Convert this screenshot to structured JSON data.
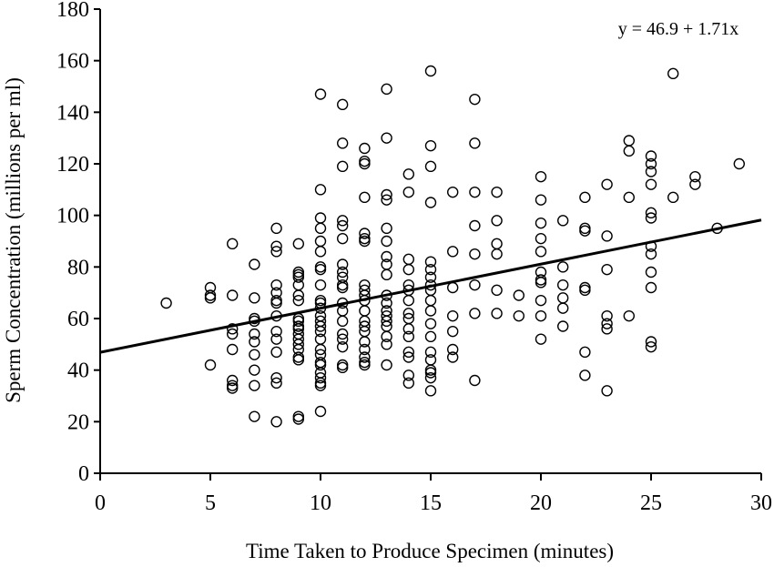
{
  "chart_data": {
    "type": "scatter",
    "title": "",
    "xlabel": "Time Taken to Produce Specimen (minutes)",
    "ylabel": "Sperm Concentration (millions per ml)",
    "xlim": [
      0,
      30
    ],
    "ylim": [
      0,
      180
    ],
    "xticks": [
      0,
      5,
      10,
      15,
      20,
      25,
      30
    ],
    "yticks": [
      0,
      20,
      40,
      60,
      80,
      100,
      120,
      140,
      160,
      180
    ],
    "grid": false,
    "marker": "open-circle",
    "annotation": "y = 46.9 + 1.71x",
    "regression": {
      "intercept": 46.9,
      "slope": 1.71
    },
    "points": [
      [
        3,
        66
      ],
      [
        5,
        72
      ],
      [
        5,
        69
      ],
      [
        5,
        68
      ],
      [
        5,
        42
      ],
      [
        6,
        89
      ],
      [
        6,
        69
      ],
      [
        6,
        56
      ],
      [
        6,
        54
      ],
      [
        6,
        48
      ],
      [
        6,
        36
      ],
      [
        6,
        34
      ],
      [
        6,
        33
      ],
      [
        7,
        81
      ],
      [
        7,
        68
      ],
      [
        7,
        60
      ],
      [
        7,
        59
      ],
      [
        7,
        54
      ],
      [
        7,
        51
      ],
      [
        7,
        46
      ],
      [
        7,
        40
      ],
      [
        7,
        34
      ],
      [
        7,
        22
      ],
      [
        8,
        95
      ],
      [
        8,
        88
      ],
      [
        8,
        86
      ],
      [
        8,
        73
      ],
      [
        8,
        70
      ],
      [
        8,
        67
      ],
      [
        8,
        66
      ],
      [
        8,
        61
      ],
      [
        8,
        55
      ],
      [
        8,
        52
      ],
      [
        8,
        47
      ],
      [
        8,
        37
      ],
      [
        8,
        35
      ],
      [
        8,
        20
      ],
      [
        9,
        89
      ],
      [
        9,
        78
      ],
      [
        9,
        77
      ],
      [
        9,
        76
      ],
      [
        9,
        73
      ],
      [
        9,
        69
      ],
      [
        9,
        67
      ],
      [
        9,
        60
      ],
      [
        9,
        59
      ],
      [
        9,
        57
      ],
      [
        9,
        56
      ],
      [
        9,
        54
      ],
      [
        9,
        52
      ],
      [
        9,
        50
      ],
      [
        9,
        48
      ],
      [
        9,
        45
      ],
      [
        9,
        44
      ],
      [
        9,
        21
      ],
      [
        9,
        22
      ],
      [
        10,
        147
      ],
      [
        10,
        110
      ],
      [
        10,
        99
      ],
      [
        10,
        95
      ],
      [
        10,
        90
      ],
      [
        10,
        86
      ],
      [
        10,
        80
      ],
      [
        10,
        79
      ],
      [
        10,
        73
      ],
      [
        10,
        67
      ],
      [
        10,
        66
      ],
      [
        10,
        64
      ],
      [
        10,
        61
      ],
      [
        10,
        59
      ],
      [
        10,
        57
      ],
      [
        10,
        55
      ],
      [
        10,
        52
      ],
      [
        10,
        48
      ],
      [
        10,
        46
      ],
      [
        10,
        43
      ],
      [
        10,
        42
      ],
      [
        10,
        39
      ],
      [
        10,
        37
      ],
      [
        10,
        35
      ],
      [
        10,
        34
      ],
      [
        10,
        24
      ],
      [
        11,
        143
      ],
      [
        11,
        128
      ],
      [
        11,
        119
      ],
      [
        11,
        98
      ],
      [
        11,
        96
      ],
      [
        11,
        91
      ],
      [
        11,
        81
      ],
      [
        11,
        78
      ],
      [
        11,
        76
      ],
      [
        11,
        73
      ],
      [
        11,
        72
      ],
      [
        11,
        66
      ],
      [
        11,
        63
      ],
      [
        11,
        59
      ],
      [
        11,
        54
      ],
      [
        11,
        52
      ],
      [
        11,
        49
      ],
      [
        11,
        42
      ],
      [
        11,
        41
      ],
      [
        12,
        126
      ],
      [
        12,
        121
      ],
      [
        12,
        120
      ],
      [
        12,
        107
      ],
      [
        12,
        93
      ],
      [
        12,
        91
      ],
      [
        12,
        90
      ],
      [
        12,
        73
      ],
      [
        12,
        71
      ],
      [
        12,
        69
      ],
      [
        12,
        67
      ],
      [
        12,
        63
      ],
      [
        12,
        59
      ],
      [
        12,
        57
      ],
      [
        12,
        55
      ],
      [
        12,
        51
      ],
      [
        12,
        48
      ],
      [
        12,
        45
      ],
      [
        12,
        43
      ],
      [
        12,
        42
      ],
      [
        13,
        149
      ],
      [
        13,
        130
      ],
      [
        13,
        108
      ],
      [
        13,
        106
      ],
      [
        13,
        95
      ],
      [
        13,
        90
      ],
      [
        13,
        84
      ],
      [
        13,
        81
      ],
      [
        13,
        77
      ],
      [
        13,
        69
      ],
      [
        13,
        66
      ],
      [
        13,
        63
      ],
      [
        13,
        61
      ],
      [
        13,
        59
      ],
      [
        13,
        57
      ],
      [
        13,
        53
      ],
      [
        13,
        50
      ],
      [
        13,
        42
      ],
      [
        14,
        116
      ],
      [
        14,
        109
      ],
      [
        14,
        83
      ],
      [
        14,
        79
      ],
      [
        14,
        73
      ],
      [
        14,
        71
      ],
      [
        14,
        67
      ],
      [
        14,
        62
      ],
      [
        14,
        60
      ],
      [
        14,
        56
      ],
      [
        14,
        53
      ],
      [
        14,
        47
      ],
      [
        14,
        45
      ],
      [
        14,
        38
      ],
      [
        14,
        35
      ],
      [
        15,
        156
      ],
      [
        15,
        127
      ],
      [
        15,
        119
      ],
      [
        15,
        105
      ],
      [
        15,
        82
      ],
      [
        15,
        79
      ],
      [
        15,
        76
      ],
      [
        15,
        73
      ],
      [
        15,
        71
      ],
      [
        15,
        67
      ],
      [
        15,
        63
      ],
      [
        15,
        58
      ],
      [
        15,
        53
      ],
      [
        15,
        47
      ],
      [
        15,
        44
      ],
      [
        15,
        40
      ],
      [
        15,
        39
      ],
      [
        15,
        37
      ],
      [
        15,
        32
      ],
      [
        16,
        109
      ],
      [
        16,
        86
      ],
      [
        16,
        72
      ],
      [
        16,
        61
      ],
      [
        16,
        55
      ],
      [
        16,
        48
      ],
      [
        16,
        45
      ],
      [
        17,
        145
      ],
      [
        17,
        128
      ],
      [
        17,
        109
      ],
      [
        17,
        96
      ],
      [
        17,
        85
      ],
      [
        17,
        73
      ],
      [
        17,
        62
      ],
      [
        17,
        36
      ],
      [
        18,
        109
      ],
      [
        18,
        98
      ],
      [
        18,
        89
      ],
      [
        18,
        85
      ],
      [
        18,
        71
      ],
      [
        18,
        62
      ],
      [
        19,
        69
      ],
      [
        19,
        61
      ],
      [
        20,
        115
      ],
      [
        20,
        106
      ],
      [
        20,
        97
      ],
      [
        20,
        91
      ],
      [
        20,
        86
      ],
      [
        20,
        78
      ],
      [
        20,
        75
      ],
      [
        20,
        74
      ],
      [
        20,
        67
      ],
      [
        20,
        61
      ],
      [
        20,
        52
      ],
      [
        21,
        98
      ],
      [
        21,
        80
      ],
      [
        21,
        73
      ],
      [
        21,
        68
      ],
      [
        21,
        64
      ],
      [
        21,
        57
      ],
      [
        22,
        107
      ],
      [
        22,
        95
      ],
      [
        22,
        94
      ],
      [
        22,
        72
      ],
      [
        22,
        71
      ],
      [
        22,
        47
      ],
      [
        22,
        38
      ],
      [
        23,
        112
      ],
      [
        23,
        92
      ],
      [
        23,
        79
      ],
      [
        23,
        61
      ],
      [
        23,
        58
      ],
      [
        23,
        56
      ],
      [
        23,
        32
      ],
      [
        24,
        129
      ],
      [
        24,
        125
      ],
      [
        24,
        107
      ],
      [
        24,
        61
      ],
      [
        25,
        123
      ],
      [
        25,
        120
      ],
      [
        25,
        117
      ],
      [
        25,
        112
      ],
      [
        25,
        101
      ],
      [
        25,
        99
      ],
      [
        25,
        88
      ],
      [
        25,
        85
      ],
      [
        25,
        78
      ],
      [
        25,
        72
      ],
      [
        25,
        51
      ],
      [
        25,
        49
      ],
      [
        26,
        155
      ],
      [
        26,
        107
      ],
      [
        27,
        115
      ],
      [
        27,
        112
      ],
      [
        28,
        95
      ],
      [
        29,
        120
      ]
    ]
  }
}
